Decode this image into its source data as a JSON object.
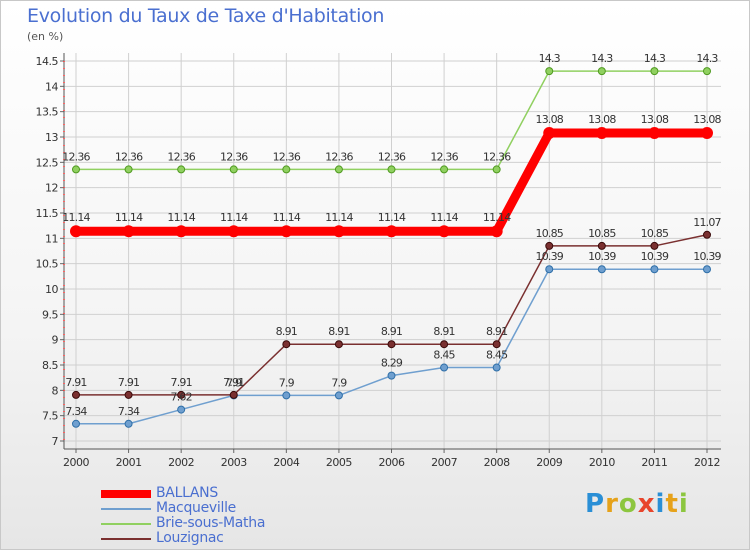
{
  "chart_data": {
    "type": "line",
    "title": "Evolution du Taux de Taxe d'Habitation",
    "unit_label": "(en %)",
    "x": [
      "2000",
      "2001",
      "2002",
      "2003",
      "2004",
      "2005",
      "2006",
      "2007",
      "2008",
      "2009",
      "2010",
      "2011",
      "2012"
    ],
    "ylim": [
      7,
      14.5
    ],
    "yticks": [
      "7",
      "7.5",
      "8",
      "8.5",
      "9",
      "9.5",
      "10",
      "10.5",
      "11",
      "11.5",
      "12",
      "12.5",
      "13",
      "13.5",
      "14",
      "14.5"
    ],
    "grid": true,
    "legend_position": "bottom-left",
    "series": [
      {
        "name": "BALLANS",
        "color": "#ff0000",
        "values": [
          11.14,
          11.14,
          11.14,
          11.14,
          11.14,
          11.14,
          11.14,
          11.14,
          11.14,
          13.08,
          13.08,
          13.08,
          13.08
        ],
        "labels": [
          "11.14",
          "11.14",
          "11.14",
          "11.14",
          "11.14",
          "11.14",
          "11.14",
          "11.14",
          "11.14",
          "13.08",
          "13.08",
          "13.08",
          "13.08"
        ]
      },
      {
        "name": "Macqueville",
        "color": "#6f9fcf",
        "values": [
          7.34,
          7.34,
          7.62,
          7.9,
          7.9,
          7.9,
          8.29,
          8.45,
          8.45,
          10.39,
          10.39,
          10.39,
          10.39
        ],
        "labels": [
          "7.34",
          "7.34",
          "7.62",
          "7.9",
          "7.9",
          "7.9",
          "8.29",
          "8.45",
          "8.45",
          "10.39",
          "10.39",
          "10.39",
          "10.39"
        ]
      },
      {
        "name": "Brie-sous-Matha",
        "color": "#90d060",
        "values": [
          12.36,
          12.36,
          12.36,
          12.36,
          12.36,
          12.36,
          12.36,
          12.36,
          12.36,
          14.3,
          14.3,
          14.3,
          14.3
        ],
        "labels": [
          "12.36",
          "12.36",
          "12.36",
          "12.36",
          "12.36",
          "12.36",
          "12.36",
          "12.36",
          "12.36",
          "14.3",
          "14.3",
          "14.3",
          "14.3"
        ]
      },
      {
        "name": "Louzignac",
        "color": "#7a3030",
        "values": [
          7.91,
          7.91,
          7.91,
          7.91,
          8.91,
          8.91,
          8.91,
          8.91,
          8.91,
          10.85,
          10.85,
          10.85,
          11.07
        ],
        "labels": [
          "7.91",
          "7.91",
          "7.91",
          "7.91",
          "8.91",
          "8.91",
          "8.91",
          "8.91",
          "8.91",
          "10.85",
          "10.85",
          "10.85",
          "11.07"
        ]
      }
    ]
  },
  "logo": {
    "text": "Proxiti",
    "letters": [
      "P",
      "r",
      "o",
      "x",
      "i",
      "t",
      "i"
    ]
  }
}
